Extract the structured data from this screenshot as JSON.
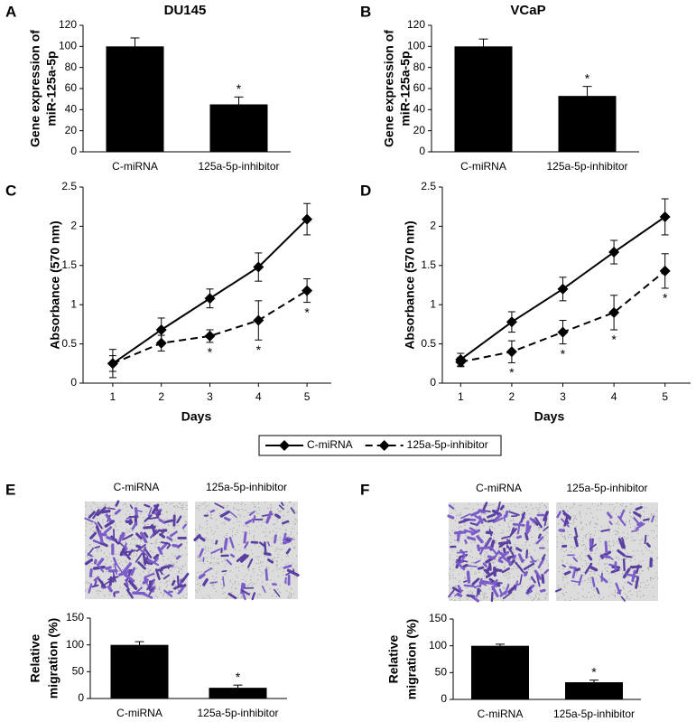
{
  "chart_data": [
    {
      "panel": "A",
      "type": "bar",
      "title": "DU145",
      "ylabel": [
        "Gene expression of",
        "miR-125a-5p"
      ],
      "categories": [
        "C-miRNA",
        "125a-5p-inhibitor"
      ],
      "values": [
        100,
        45
      ],
      "errors": [
        8,
        7
      ],
      "significance": [
        null,
        "*"
      ],
      "color": "#000000",
      "ylim": [
        0,
        120
      ],
      "yticks": [
        0,
        20,
        40,
        60,
        80,
        100,
        120
      ]
    },
    {
      "panel": "B",
      "type": "bar",
      "title": "VCaP",
      "ylabel": [
        "Gene expression of",
        "miR-125a-5p"
      ],
      "categories": [
        "C-miRNA",
        "125a-5p-inhibitor"
      ],
      "values": [
        100,
        53
      ],
      "errors": [
        7,
        9
      ],
      "significance": [
        null,
        "*"
      ],
      "color": "#000000",
      "ylim": [
        0,
        120
      ],
      "yticks": [
        0,
        20,
        40,
        60,
        80,
        100,
        120
      ]
    },
    {
      "panel": "C",
      "type": "line",
      "ylabel": [
        "Absorbance (570 nm)"
      ],
      "xlabel": "Days",
      "x": [
        1,
        2,
        3,
        4,
        5
      ],
      "xlim": [
        0.5,
        5.5
      ],
      "xticks": [
        1,
        2,
        3,
        4,
        5
      ],
      "ylim": [
        0,
        2.5
      ],
      "yticks": [
        0,
        0.5,
        1,
        1.5,
        2,
        2.5
      ],
      "legend": "bottom",
      "series": [
        {
          "name": "C-miRNA",
          "color": "#000000",
          "line_style": "solid",
          "values": [
            0.25,
            0.68,
            1.08,
            1.48,
            2.09
          ],
          "errors": [
            0.1,
            0.15,
            0.12,
            0.18,
            0.2
          ]
        },
        {
          "name": "125a-5p-inhibitor",
          "color": "#000000",
          "line_style": "dashed",
          "values": [
            0.25,
            0.51,
            0.6,
            0.8,
            1.18
          ],
          "errors": [
            0.18,
            0.1,
            0.08,
            0.25,
            0.15
          ],
          "significance": [
            null,
            null,
            "*",
            "*",
            "*"
          ]
        }
      ]
    },
    {
      "panel": "D",
      "type": "line",
      "ylabel": [
        "Absorbance (570 nm)"
      ],
      "xlabel": "Days",
      "x": [
        1,
        2,
        3,
        4,
        5
      ],
      "xlim": [
        0.5,
        5.5
      ],
      "xticks": [
        1,
        2,
        3,
        4,
        5
      ],
      "ylim": [
        0,
        2.5
      ],
      "yticks": [
        0,
        0.5,
        1,
        1.5,
        2,
        2.5
      ],
      "series": [
        {
          "name": "C-miRNA",
          "color": "#000000",
          "line_style": "solid",
          "values": [
            0.3,
            0.78,
            1.2,
            1.67,
            2.12
          ],
          "errors": [
            0.08,
            0.13,
            0.15,
            0.15,
            0.23
          ]
        },
        {
          "name": "125a-5p-inhibitor",
          "color": "#000000",
          "line_style": "dashed",
          "values": [
            0.27,
            0.4,
            0.65,
            0.9,
            1.43
          ],
          "errors": [
            0.06,
            0.14,
            0.15,
            0.22,
            0.22
          ],
          "significance": [
            null,
            "*",
            "*",
            "*",
            "*"
          ]
        }
      ]
    },
    {
      "panel": "E",
      "type": "bar",
      "images": true,
      "ylabel": [
        "Relative",
        "migration (%)"
      ],
      "categories": [
        "C-miRNA",
        "125a-5p-inhibitor"
      ],
      "values": [
        100,
        20
      ],
      "errors": [
        6,
        5
      ],
      "significance": [
        null,
        "*"
      ],
      "color": "#000000",
      "ylim": [
        0,
        150
      ],
      "yticks": [
        0,
        50,
        100,
        150
      ]
    },
    {
      "panel": "F",
      "type": "bar",
      "images": true,
      "ylabel": [
        "Relative",
        "migration (%)"
      ],
      "categories": [
        "C-miRNA",
        "125a-5p-inhibitor"
      ],
      "values": [
        100,
        32
      ],
      "errors": [
        3,
        4
      ],
      "significance": [
        null,
        "*"
      ],
      "color": "#000000",
      "ylim": [
        0,
        150
      ],
      "yticks": [
        0,
        50,
        100,
        150
      ]
    }
  ]
}
